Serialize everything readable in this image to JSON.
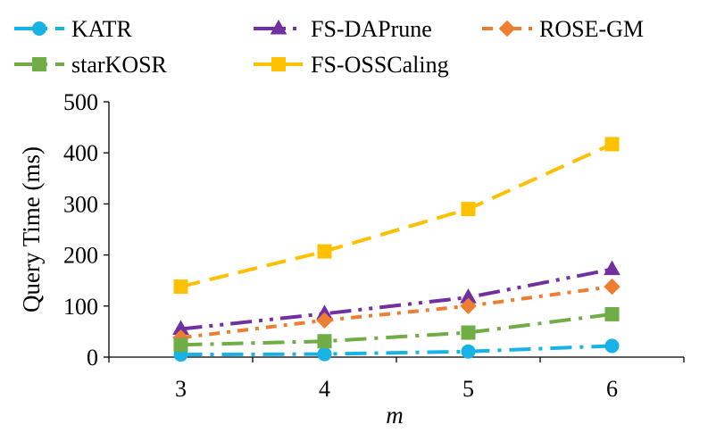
{
  "chart_data": {
    "type": "line",
    "title": "",
    "xlabel": "m",
    "ylabel": "Query Time (ms)",
    "categories": [
      3,
      4,
      5,
      6
    ],
    "ylim": [
      0,
      500
    ],
    "yticks": [
      0,
      100,
      200,
      300,
      400,
      500
    ],
    "grid": false,
    "legend_position": "top",
    "series": [
      {
        "name": "KATR",
        "values": [
          5,
          6,
          11,
          22
        ],
        "color": "#19B2E6",
        "marker": "circle",
        "dash": "long-dash-dot"
      },
      {
        "name": "FS-DAPrune",
        "values": [
          55,
          85,
          117,
          172
        ],
        "color": "#7030A0",
        "marker": "triangle",
        "dash": "long-dash-dot-dot"
      },
      {
        "name": "ROSE-GM",
        "values": [
          38,
          72,
          100,
          138
        ],
        "color": "#ED7D31",
        "marker": "diamond",
        "dash": "dash-dot"
      },
      {
        "name": "starKOSR",
        "values": [
          24,
          31,
          48,
          84
        ],
        "color": "#70AD47",
        "marker": "square",
        "dash": "long-dash-dot"
      },
      {
        "name": "FS-OSSCaling",
        "values": [
          138,
          207,
          290,
          417
        ],
        "color": "#FFC000",
        "marker": "square",
        "dash": "dash"
      }
    ]
  }
}
